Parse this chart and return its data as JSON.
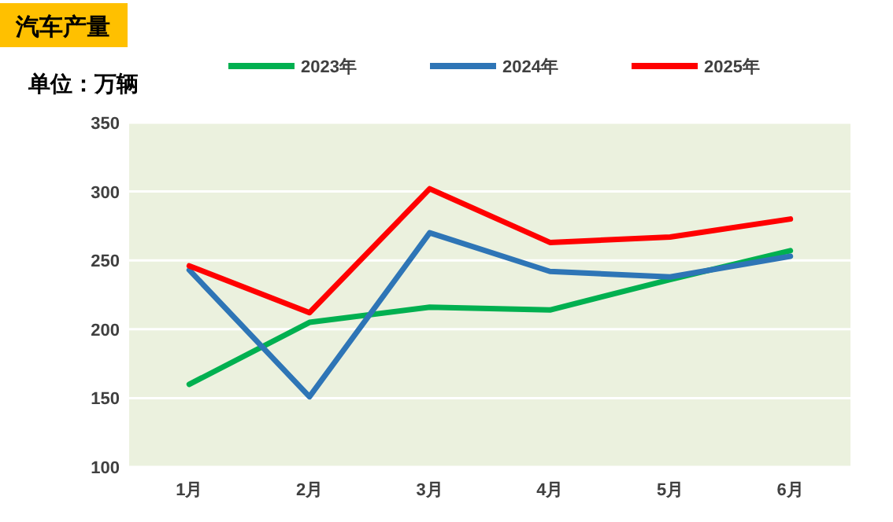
{
  "chart_data": {
    "type": "line",
    "title": "汽车产量",
    "annotations": [
      "单位：万辆"
    ],
    "categories": [
      "1月",
      "2月",
      "3月",
      "4月",
      "5月",
      "6月"
    ],
    "series": [
      {
        "name": "2023年",
        "color": "#00b050",
        "values": [
          160,
          205,
          216,
          214,
          236,
          257
        ]
      },
      {
        "name": "2024年",
        "color": "#2e75b6",
        "values": [
          243,
          151,
          270,
          242,
          238,
          253
        ]
      },
      {
        "name": "2025年",
        "color": "#ff0000",
        "values": [
          246,
          212,
          302,
          263,
          267,
          280
        ]
      }
    ],
    "ylim": [
      100,
      350
    ],
    "yticks": [
      100,
      150,
      200,
      250,
      300,
      350
    ],
    "grid": "y",
    "legend": "top",
    "line_style": "solid"
  }
}
